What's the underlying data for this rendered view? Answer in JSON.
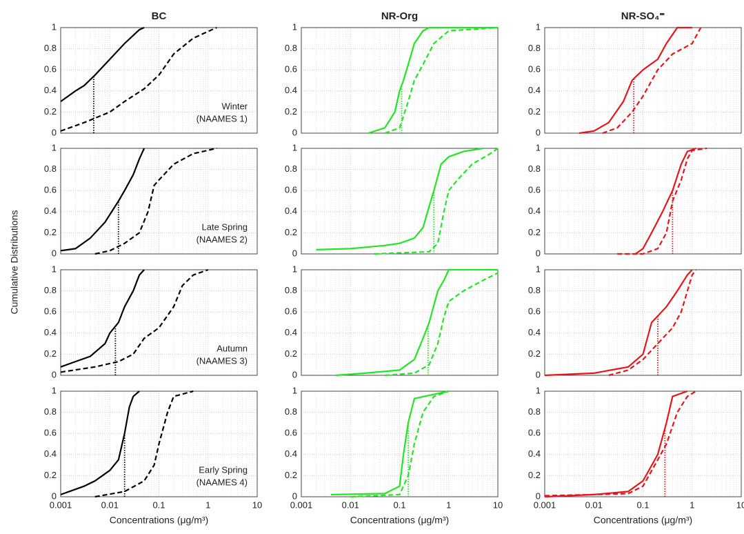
{
  "figure": {
    "ylabel": "Cumulative Distributions"
  },
  "chart_data": [
    {
      "type": "line",
      "title": "BC",
      "annotation": [
        "Winter",
        "(NAAMES 1)"
      ],
      "xlim": [
        0.001,
        10
      ],
      "xticks": [
        0.001,
        0.01,
        0.1,
        1,
        10
      ],
      "log_x": true,
      "ylim": [
        0,
        1
      ],
      "yticks": [
        0,
        0.2,
        0.4,
        0.6,
        0.8,
        1
      ],
      "grid": true,
      "median_x": 0.0047,
      "series": [
        {
          "color": "#000000",
          "dash": "solid",
          "x": [
            0.001,
            0.002,
            0.003,
            0.005,
            0.01,
            0.02,
            0.04,
            0.05
          ],
          "values": [
            0.3,
            0.4,
            0.45,
            0.55,
            0.7,
            0.85,
            0.98,
            1
          ]
        },
        {
          "color": "#000000",
          "dash": "dashed",
          "x": [
            0.001,
            0.003,
            0.01,
            0.02,
            0.05,
            0.1,
            0.2,
            0.5,
            1.5
          ],
          "values": [
            0.02,
            0.1,
            0.2,
            0.3,
            0.42,
            0.55,
            0.75,
            0.9,
            1
          ]
        }
      ]
    },
    {
      "type": "line",
      "title": "NR-Org",
      "xlim": [
        0.001,
        10
      ],
      "xticks": [
        0.001,
        0.01,
        0.1,
        1,
        10
      ],
      "log_x": true,
      "ylim": [
        0,
        1
      ],
      "yticks": [
        0,
        0.2,
        0.4,
        0.6,
        0.8,
        1
      ],
      "grid": true,
      "median_x": 0.11,
      "series": [
        {
          "color": "#22e622",
          "dash": "solid",
          "x": [
            0.023,
            0.05,
            0.08,
            0.1,
            0.12,
            0.15,
            0.2,
            0.3,
            0.4,
            10
          ],
          "values": [
            0,
            0.05,
            0.2,
            0.4,
            0.5,
            0.65,
            0.85,
            0.97,
            1,
            1
          ]
        },
        {
          "color": "#22e622",
          "dash": "dashed",
          "x": [
            0.05,
            0.1,
            0.15,
            0.2,
            0.3,
            0.5,
            1,
            5,
            10
          ],
          "values": [
            0,
            0.05,
            0.3,
            0.5,
            0.65,
            0.85,
            0.97,
            0.99,
            1
          ]
        }
      ]
    },
    {
      "type": "line",
      "title": "NR-SO₄⁼",
      "xlim": [
        0.001,
        10
      ],
      "xticks": [
        0.001,
        0.01,
        0.1,
        1,
        10
      ],
      "log_x": true,
      "ylim": [
        0,
        1
      ],
      "yticks": [
        0,
        0.2,
        0.4,
        0.6,
        0.8,
        1
      ],
      "grid": true,
      "median_x": 0.065,
      "series": [
        {
          "color": "#e8141a",
          "dash": "solid",
          "x": [
            0.005,
            0.01,
            0.02,
            0.04,
            0.06,
            0.1,
            0.2,
            0.3,
            0.5,
            1
          ],
          "values": [
            0,
            0.02,
            0.1,
            0.3,
            0.5,
            0.6,
            0.7,
            0.85,
            1,
            1
          ]
        },
        {
          "color": "#e8141a",
          "dash": "dashed",
          "x": [
            0.015,
            0.03,
            0.06,
            0.1,
            0.2,
            0.4,
            1,
            1.5
          ],
          "values": [
            0,
            0.05,
            0.2,
            0.35,
            0.6,
            0.75,
            0.85,
            1
          ]
        }
      ]
    },
    {
      "type": "line",
      "annotation": [
        "Late Spring",
        "(NAAMES 2)"
      ],
      "xlim": [
        0.001,
        10
      ],
      "xticks": [
        0.001,
        0.01,
        0.1,
        1,
        10
      ],
      "log_x": true,
      "ylim": [
        0,
        1
      ],
      "yticks": [
        0,
        0.2,
        0.4,
        0.6,
        0.8,
        1
      ],
      "grid": true,
      "median_x": 0.015,
      "series": [
        {
          "color": "#000000",
          "dash": "solid",
          "x": [
            0.001,
            0.002,
            0.004,
            0.008,
            0.015,
            0.02,
            0.03,
            0.04,
            0.05
          ],
          "values": [
            0.03,
            0.05,
            0.15,
            0.3,
            0.5,
            0.6,
            0.75,
            0.9,
            1
          ]
        },
        {
          "color": "#000000",
          "dash": "dashed",
          "x": [
            0.005,
            0.01,
            0.02,
            0.04,
            0.06,
            0.08,
            0.1,
            0.2,
            0.5,
            1.5
          ],
          "values": [
            0,
            0.03,
            0.1,
            0.2,
            0.4,
            0.65,
            0.7,
            0.85,
            0.95,
            1
          ]
        }
      ]
    },
    {
      "type": "line",
      "xlim": [
        0.001,
        10
      ],
      "xticks": [
        0.001,
        0.01,
        0.1,
        1,
        10
      ],
      "log_x": true,
      "ylim": [
        0,
        1
      ],
      "yticks": [
        0,
        0.2,
        0.4,
        0.6,
        0.8,
        1
      ],
      "grid": true,
      "median_x": 0.5,
      "series": [
        {
          "color": "#22e622",
          "dash": "solid",
          "x": [
            0.002,
            0.01,
            0.05,
            0.1,
            0.2,
            0.3,
            0.4,
            0.5,
            0.7,
            1,
            2,
            5
          ],
          "values": [
            0.04,
            0.05,
            0.08,
            0.1,
            0.15,
            0.25,
            0.45,
            0.6,
            0.85,
            0.92,
            0.97,
            1
          ]
        },
        {
          "color": "#22e622",
          "dash": "dashed",
          "x": [
            0.03,
            0.4,
            0.6,
            0.8,
            1,
            1.5,
            3,
            7,
            10
          ],
          "values": [
            0,
            0.02,
            0.1,
            0.4,
            0.6,
            0.7,
            0.85,
            0.95,
            1
          ]
        }
      ]
    },
    {
      "type": "line",
      "xlim": [
        0.001,
        10
      ],
      "xticks": [
        0.001,
        0.01,
        0.1,
        1,
        10
      ],
      "log_x": true,
      "ylim": [
        0,
        1
      ],
      "yticks": [
        0,
        0.2,
        0.4,
        0.6,
        0.8,
        1
      ],
      "grid": true,
      "median_x": 0.4,
      "series": [
        {
          "color": "#e8141a",
          "dash": "solid",
          "x": [
            0.07,
            0.1,
            0.15,
            0.25,
            0.4,
            0.6,
            0.8,
            1.2
          ],
          "values": [
            0,
            0.05,
            0.2,
            0.4,
            0.6,
            0.85,
            0.97,
            1
          ]
        },
        {
          "color": "#e8141a",
          "dash": "dashed",
          "x": [
            0.03,
            0.1,
            0.2,
            0.3,
            0.4,
            0.6,
            0.8,
            1,
            2
          ],
          "values": [
            0,
            0,
            0.05,
            0.2,
            0.5,
            0.7,
            0.9,
            0.98,
            1
          ]
        }
      ]
    },
    {
      "type": "line",
      "annotation": [
        "Autumn",
        "(NAAMES 3)"
      ],
      "xlim": [
        0.001,
        10
      ],
      "xticks": [
        0.001,
        0.01,
        0.1,
        1,
        10
      ],
      "log_x": true,
      "ylim": [
        0,
        1
      ],
      "yticks": [
        0,
        0.2,
        0.4,
        0.6,
        0.8,
        1
      ],
      "grid": true,
      "median_x": 0.013,
      "series": [
        {
          "color": "#000000",
          "dash": "solid",
          "x": [
            0.001,
            0.002,
            0.004,
            0.008,
            0.01,
            0.015,
            0.02,
            0.03,
            0.04,
            0.05
          ],
          "values": [
            0.08,
            0.13,
            0.18,
            0.3,
            0.4,
            0.5,
            0.65,
            0.8,
            0.95,
            1
          ]
        },
        {
          "color": "#000000",
          "dash": "dashed",
          "x": [
            0.001,
            0.005,
            0.015,
            0.03,
            0.05,
            0.1,
            0.2,
            0.3,
            0.5,
            1
          ],
          "values": [
            0.03,
            0.08,
            0.13,
            0.2,
            0.35,
            0.45,
            0.65,
            0.85,
            0.95,
            1
          ]
        }
      ]
    },
    {
      "type": "line",
      "xlim": [
        0.001,
        10
      ],
      "xticks": [
        0.001,
        0.01,
        0.1,
        1,
        10
      ],
      "log_x": true,
      "ylim": [
        0,
        1
      ],
      "yticks": [
        0,
        0.2,
        0.4,
        0.6,
        0.8,
        1
      ],
      "grid": true,
      "median_x": 0.38,
      "series": [
        {
          "color": "#22e622",
          "dash": "solid",
          "x": [
            0.005,
            0.02,
            0.1,
            0.2,
            0.3,
            0.4,
            0.6,
            0.8,
            1,
            10
          ],
          "values": [
            0,
            0.02,
            0.05,
            0.15,
            0.35,
            0.5,
            0.8,
            0.9,
            1,
            1
          ]
        },
        {
          "color": "#22e622",
          "dash": "dashed",
          "x": [
            0.05,
            0.2,
            0.4,
            0.6,
            0.8,
            1,
            2,
            5,
            10
          ],
          "values": [
            0,
            0.02,
            0.1,
            0.3,
            0.55,
            0.7,
            0.8,
            0.9,
            0.97
          ]
        }
      ]
    },
    {
      "type": "line",
      "xlim": [
        0.001,
        10
      ],
      "xticks": [
        0.001,
        0.01,
        0.1,
        1,
        10
      ],
      "log_x": true,
      "ylim": [
        0,
        1
      ],
      "yticks": [
        0,
        0.2,
        0.4,
        0.6,
        0.8,
        1
      ],
      "grid": true,
      "median_x": 0.2,
      "series": [
        {
          "color": "#e8141a",
          "dash": "solid",
          "x": [
            0.001,
            0.01,
            0.05,
            0.1,
            0.15,
            0.3,
            0.5,
            0.8,
            1
          ],
          "values": [
            0,
            0.02,
            0.08,
            0.2,
            0.5,
            0.65,
            0.8,
            0.95,
            1
          ]
        },
        {
          "color": "#e8141a",
          "dash": "dashed",
          "x": [
            0.02,
            0.05,
            0.1,
            0.2,
            0.4,
            0.6,
            1,
            1.2
          ],
          "values": [
            0,
            0.05,
            0.15,
            0.3,
            0.45,
            0.6,
            0.95,
            1
          ]
        }
      ]
    },
    {
      "type": "line",
      "annotation": [
        "Early Spring",
        "(NAAMES 4)"
      ],
      "xlabel": "Concentrations (μg/m³)",
      "xlim": [
        0.001,
        10
      ],
      "xticks": [
        0.001,
        0.01,
        0.1,
        1,
        10
      ],
      "xticklabels": true,
      "log_x": true,
      "ylim": [
        0,
        1
      ],
      "yticks": [
        0,
        0.2,
        0.4,
        0.6,
        0.8,
        1
      ],
      "grid": true,
      "median_x": 0.02,
      "series": [
        {
          "color": "#000000",
          "dash": "solid",
          "x": [
            0.001,
            0.003,
            0.005,
            0.01,
            0.015,
            0.02,
            0.025,
            0.03,
            0.04
          ],
          "values": [
            0.02,
            0.1,
            0.15,
            0.25,
            0.35,
            0.6,
            0.85,
            0.95,
            1
          ]
        },
        {
          "color": "#000000",
          "dash": "dashed",
          "x": [
            0.005,
            0.02,
            0.05,
            0.08,
            0.1,
            0.15,
            0.2,
            0.5
          ],
          "values": [
            0,
            0.05,
            0.15,
            0.3,
            0.5,
            0.8,
            0.95,
            1
          ]
        }
      ]
    },
    {
      "type": "line",
      "xlabel": "Concentrations (μg/m³)",
      "xlim": [
        0.001,
        10
      ],
      "xticks": [
        0.001,
        0.01,
        0.1,
        1,
        10
      ],
      "xticklabels": true,
      "log_x": true,
      "ylim": [
        0,
        1
      ],
      "yticks": [
        0,
        0.2,
        0.4,
        0.6,
        0.8,
        1
      ],
      "grid": true,
      "median_x": 0.15,
      "series": [
        {
          "color": "#22e622",
          "dash": "solid",
          "x": [
            0.004,
            0.05,
            0.1,
            0.12,
            0.15,
            0.2,
            0.5,
            1
          ],
          "values": [
            0.02,
            0.03,
            0.1,
            0.4,
            0.7,
            0.93,
            0.97,
            1
          ]
        },
        {
          "color": "#22e622",
          "dash": "dashed",
          "x": [
            0.01,
            0.1,
            0.15,
            0.2,
            0.3,
            0.5,
            1
          ],
          "values": [
            0,
            0.02,
            0.2,
            0.5,
            0.8,
            0.95,
            1
          ]
        }
      ]
    },
    {
      "type": "line",
      "xlabel": "Concentrations (μg/m³)",
      "xlim": [
        0.001,
        10
      ],
      "xticks": [
        0.001,
        0.01,
        0.1,
        1,
        10
      ],
      "xticklabels": true,
      "log_x": true,
      "ylim": [
        0,
        1
      ],
      "yticks": [
        0,
        0.2,
        0.4,
        0.6,
        0.8,
        1
      ],
      "grid": true,
      "median_x": 0.28,
      "series": [
        {
          "color": "#e8141a",
          "dash": "solid",
          "x": [
            0.001,
            0.01,
            0.05,
            0.1,
            0.2,
            0.3,
            0.4,
            0.8
          ],
          "values": [
            0,
            0.02,
            0.05,
            0.15,
            0.4,
            0.7,
            0.95,
            1
          ]
        },
        {
          "color": "#e8141a",
          "dash": "dashed",
          "x": [
            0.001,
            0.01,
            0.05,
            0.1,
            0.2,
            0.3,
            0.5,
            0.8,
            1.2
          ],
          "values": [
            0.01,
            0.02,
            0.03,
            0.1,
            0.35,
            0.5,
            0.8,
            0.95,
            1
          ]
        }
      ]
    }
  ]
}
